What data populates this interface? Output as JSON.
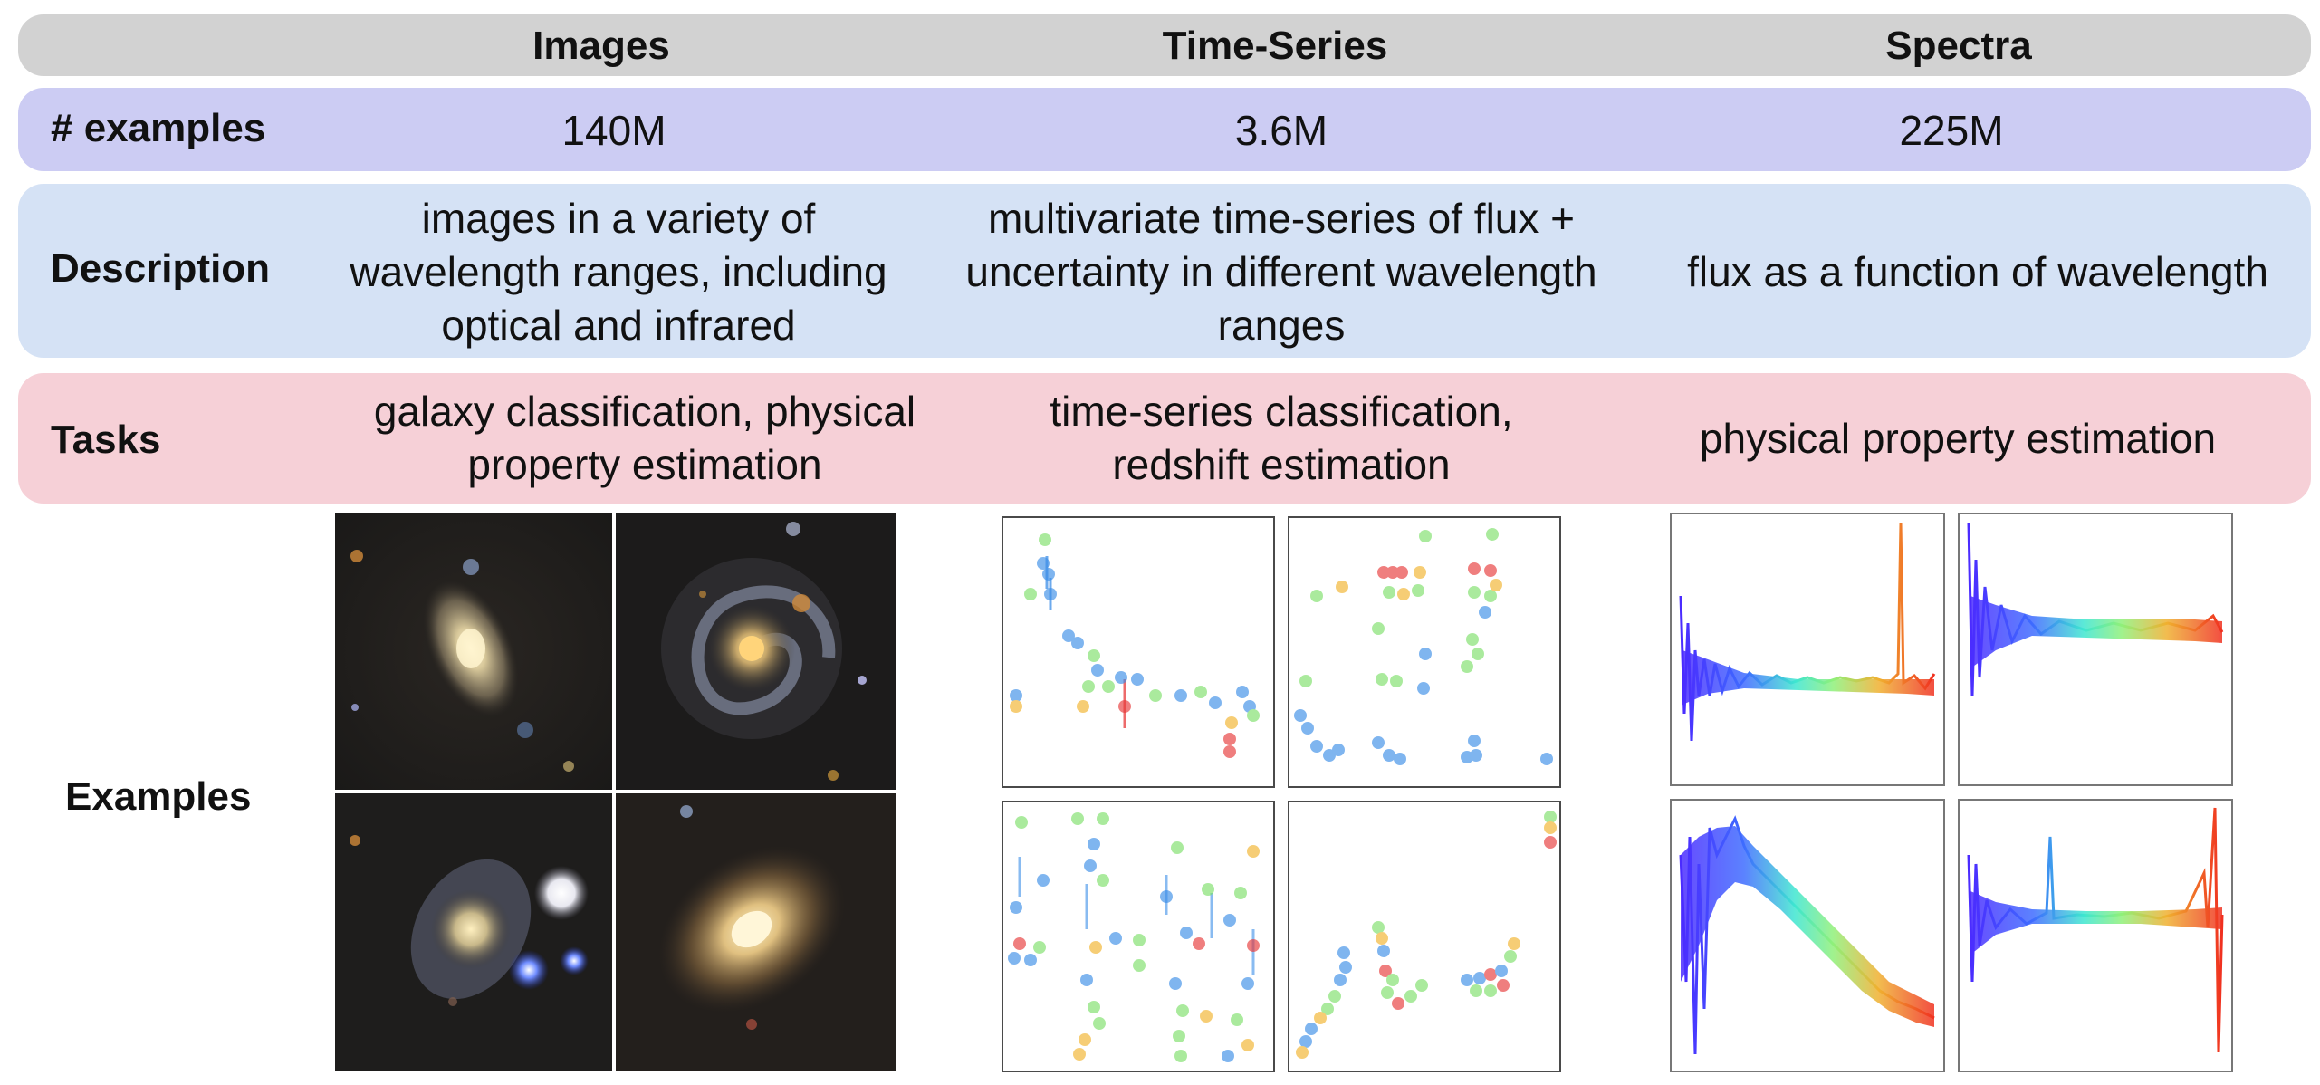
{
  "columns": {
    "images": "Images",
    "timeseries": "Time-Series",
    "spectra": "Spectra"
  },
  "rows": {
    "examples_count": {
      "label": "# examples",
      "images": "140M",
      "timeseries": "3.6M",
      "spectra": "225M"
    },
    "description": {
      "label": "Description",
      "images": "images in a variety of wavelength ranges, including optical and infrared",
      "timeseries": "multivariate time-series of flux + uncertainty in different wavelength ranges",
      "spectra": "flux as a function of wavelength"
    },
    "tasks": {
      "label": "Tasks",
      "images": "galaxy classification, physical property estimation",
      "timeseries": "time-series classification, redshift estimation",
      "spectra": "physical property estimation"
    },
    "examples": {
      "label": "Examples"
    }
  },
  "colors": {
    "header_band": "#d2d2d2",
    "examples_band": "#ccccf3",
    "description_band": "#d5e2f5",
    "tasks_band": "#f6d0d7",
    "point_blue": "#3b8ee8",
    "point_green": "#7ee06a",
    "point_orange": "#f2b32c",
    "point_red": "#e83a3a"
  }
}
